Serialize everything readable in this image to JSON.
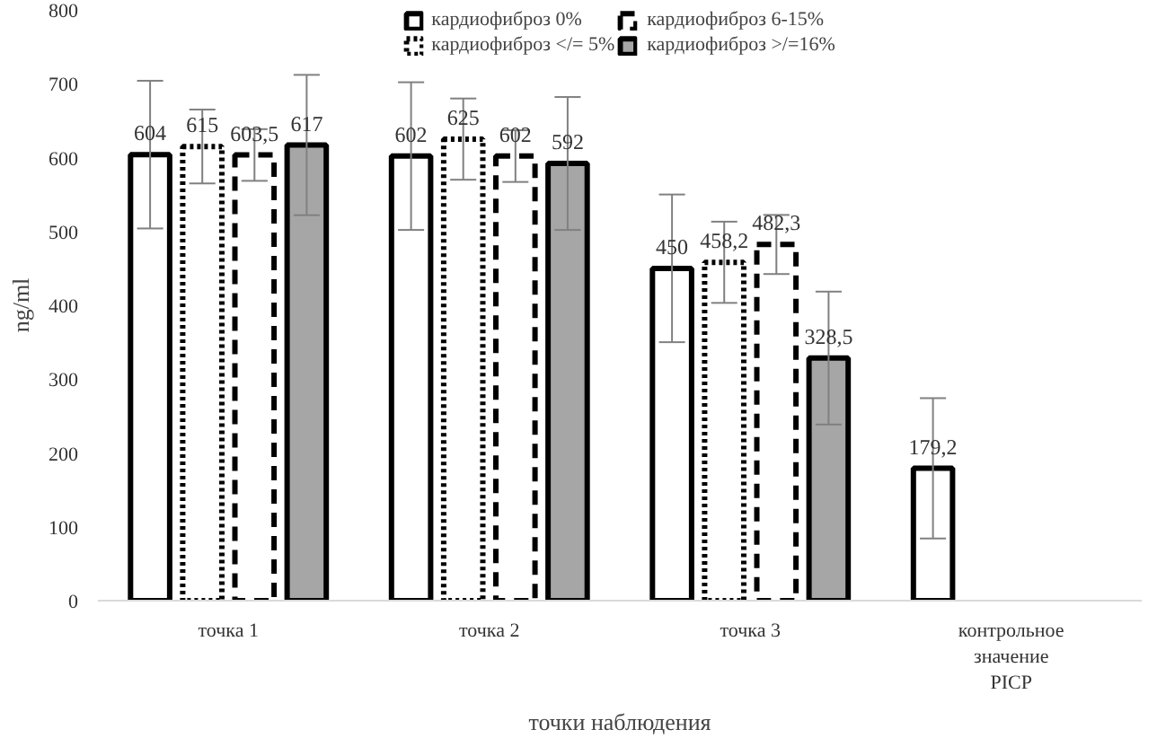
{
  "chart_data": {
    "type": "bar",
    "xlabel": "точки наблюдения",
    "ylabel": "ng/ml",
    "categories": [
      "точка 1",
      "точка 2",
      "точка 3",
      "контрольное значение PICP"
    ],
    "series": [
      {
        "name": "кардиофиброз 0%",
        "color": "#ffffff",
        "line_style": "solid",
        "values": [
          604,
          602,
          450,
          179.2
        ],
        "errors": [
          100,
          100,
          100,
          95
        ],
        "value_labels": [
          "604",
          "602",
          "450",
          "179,2"
        ]
      },
      {
        "name": "кардиофиброз </= 5%",
        "color": "#ffffff",
        "line_style": "dotted",
        "values": [
          615,
          625,
          458.2,
          null
        ],
        "errors": [
          50,
          55,
          55,
          null
        ],
        "value_labels": [
          "615",
          "625",
          "458,2",
          null
        ]
      },
      {
        "name": "кардиофиброз 6-15%",
        "color": "#ffffff",
        "line_style": "dashed",
        "values": [
          603.5,
          602,
          482.3,
          null
        ],
        "errors": [
          35,
          35,
          40,
          null
        ],
        "value_labels": [
          "603,5",
          "602",
          "482,3",
          null
        ]
      },
      {
        "name": "кардиофиброз >/=16%",
        "color": "#a6a6a6",
        "line_style": "solid",
        "values": [
          617,
          592,
          328.5,
          null
        ],
        "errors": [
          95,
          90,
          90,
          null
        ],
        "value_labels": [
          "617",
          "592",
          "328,5",
          null
        ]
      }
    ],
    "ylim": [
      0,
      800
    ],
    "yticks": [
      0,
      100,
      200,
      300,
      400,
      500,
      600,
      700,
      800
    ],
    "grid": false,
    "legend": "top"
  }
}
